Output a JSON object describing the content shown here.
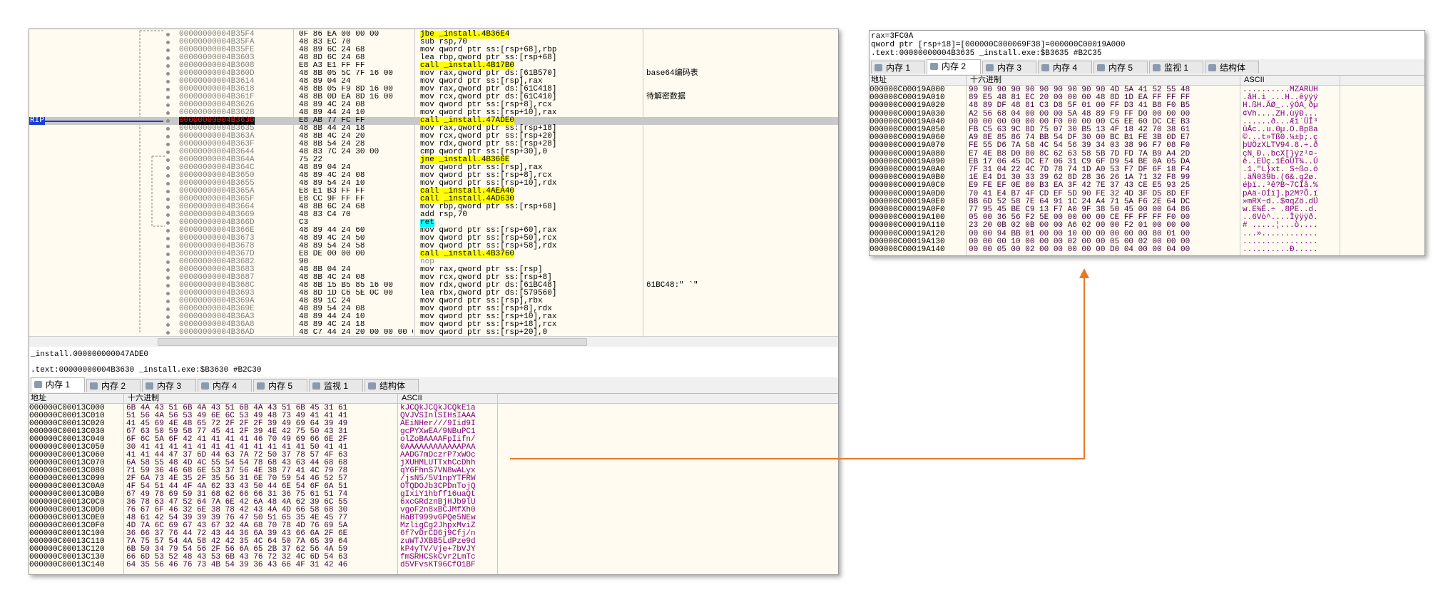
{
  "disassembly": {
    "rip_label": "RIP",
    "rows": [
      {
        "address": "00000000004B35F4",
        "bytes": "0F 86 EA 00 00 00",
        "instruction": "jbe _install.4B36E4"
      },
      {
        "address": "00000000004B35FA",
        "bytes": "48 83 EC 70",
        "instruction": "sub rsp,70"
      },
      {
        "address": "00000000004B35FE",
        "bytes": "48 89 6C 24 68",
        "instruction": "mov qword ptr ss:[rsp+68],rbp"
      },
      {
        "address": "00000000004B3603",
        "bytes": "48 8D 6C 24 68",
        "instruction": "lea rbp,qword ptr ss:[rsp+68]"
      },
      {
        "address": "00000000004B3608",
        "bytes": "E8 A3 E1 FF FF",
        "instruction": "call _install.4B17B0"
      },
      {
        "address": "00000000004B360D",
        "bytes": "48 8B 05 5C 7F 16 00",
        "instruction": "mov rax,qword ptr ds:[61B570]",
        "comment": "base64编码表"
      },
      {
        "address": "00000000004B3614",
        "bytes": "48 89 04 24",
        "instruction": "mov qword ptr ss:[rsp],rax"
      },
      {
        "address": "00000000004B3618",
        "bytes": "48 8B 05 F9 8D 16 00",
        "instruction": "mov rax,qword ptr ds:[61C418]"
      },
      {
        "address": "00000000004B361F",
        "bytes": "48 8B 0D EA 8D 16 00",
        "instruction": "mov rcx,qword ptr ds:[61C410]",
        "comment": "待解密数据"
      },
      {
        "address": "00000000004B3626",
        "bytes": "48 89 4C 24 08",
        "instruction": "mov qword ptr ss:[rsp+8],rcx"
      },
      {
        "address": "00000000004B362B",
        "bytes": "48 89 44 24 10",
        "instruction": "mov qword ptr ss:[rsp+10],rax"
      },
      {
        "address": "00000000004B3630",
        "bytes": "E8 AB 77 FC FF",
        "instruction": "call _install.47ADE0"
      },
      {
        "address": "00000000004B3635",
        "bytes": "48 8B 44 24 18",
        "instruction": "mov rax,qword ptr ss:[rsp+18]"
      },
      {
        "address": "00000000004B363A",
        "bytes": "48 8B 4C 24 20",
        "instruction": "mov rcx,qword ptr ss:[rsp+20]"
      },
      {
        "address": "00000000004B363F",
        "bytes": "48 8B 54 24 28",
        "instruction": "mov rdx,qword ptr ss:[rsp+28]"
      },
      {
        "address": "00000000004B3644",
        "bytes": "48 83 7C 24 30 00",
        "instruction": "cmp qword ptr ss:[rsp+30],0"
      },
      {
        "address": "00000000004B364A",
        "bytes": "75 22",
        "instruction": "jne _install.4B366E"
      },
      {
        "address": "00000000004B364C",
        "bytes": "48 89 04 24",
        "instruction": "mov qword ptr ss:[rsp],rax"
      },
      {
        "address": "00000000004B3650",
        "bytes": "48 89 4C 24 08",
        "instruction": "mov qword ptr ss:[rsp+8],rcx"
      },
      {
        "address": "00000000004B3655",
        "bytes": "48 89 54 24 10",
        "instruction": "mov qword ptr ss:[rsp+10],rdx"
      },
      {
        "address": "00000000004B365A",
        "bytes": "E8 E1 B3 FF FF",
        "instruction": "call _install.4AEA40"
      },
      {
        "address": "00000000004B365F",
        "bytes": "E8 CC 9F FF FF",
        "instruction": "call _install.4AD630"
      },
      {
        "address": "00000000004B3664",
        "bytes": "48 8B 6C 24 68",
        "instruction": "mov rbp,qword ptr ss:[rsp+68]"
      },
      {
        "address": "00000000004B3669",
        "bytes": "48 83 C4 70",
        "instruction": "add rsp,70"
      },
      {
        "address": "00000000004B366D",
        "bytes": "C3",
        "instruction": "ret"
      },
      {
        "address": "00000000004B366E",
        "bytes": "48 89 44 24 60",
        "instruction": "mov qword ptr ss:[rsp+60],rax"
      },
      {
        "address": "00000000004B3673",
        "bytes": "48 89 4C 24 50",
        "instruction": "mov qword ptr ss:[rsp+50],rcx"
      },
      {
        "address": "00000000004B3678",
        "bytes": "48 89 54 24 58",
        "instruction": "mov qword ptr ss:[rsp+58],rdx"
      },
      {
        "address": "00000000004B367D",
        "bytes": "E8 DE 00 00 00",
        "instruction": "call _install.4B3760"
      },
      {
        "address": "00000000004B3682",
        "bytes": "90",
        "instruction": "nop"
      },
      {
        "address": "00000000004B3683",
        "bytes": "48 8B 04 24",
        "instruction": "mov rax,qword ptr ss:[rsp]"
      },
      {
        "address": "00000000004B3687",
        "bytes": "48 8B 4C 24 08",
        "instruction": "mov rcx,qword ptr ss:[rsp+8]"
      },
      {
        "address": "00000000004B368C",
        "bytes": "48 8B 15 B5 85 16 00",
        "instruction": "mov rdx,qword ptr ds:[61BC48]",
        "comment": "61BC48:\" `\""
      },
      {
        "address": "00000000004B3693",
        "bytes": "48 8D 1D C6 5E 0C 00",
        "instruction": "lea rbx,qword ptr ds:[579560]"
      },
      {
        "address": "00000000004B369A",
        "bytes": "48 89 1C 24",
        "instruction": "mov qword ptr ss:[rsp],rbx"
      },
      {
        "address": "00000000004B369E",
        "bytes": "48 89 54 24 08",
        "instruction": "mov qword ptr ss:[rsp+8],rdx"
      },
      {
        "address": "00000000004B36A3",
        "bytes": "48 89 44 24 10",
        "instruction": "mov qword ptr ss:[rsp+10],rax"
      },
      {
        "address": "00000000004B36A8",
        "bytes": "48 89 4C 24 18",
        "instruction": "mov qword ptr ss:[rsp+18],rcx"
      },
      {
        "address": "00000000004B36AD",
        "bytes": "48 C7 44 24 20 00 00 00 00",
        "instruction": "mov qword ptr ss:[rsp+20],0"
      }
    ]
  },
  "status": {
    "line1": "_install.000000000047ADE0",
    "line2": ".text:00000000004B3630 _install.exe:$B3630 #B2C30"
  },
  "tabs": [
    "内存 1",
    "内存 2",
    "内存 3",
    "内存 4",
    "内存 5",
    "监视 1",
    "结构体"
  ],
  "memory_dump": {
    "headers": [
      "地址",
      "十六进制",
      "ASCII"
    ],
    "rows": [
      {
        "address": "000000C00013C000",
        "hex": "6B 4A 43 51 6B 4A 43 51 6B 4A 43 51 6B 45 31 61",
        "ascii": "kJCQkJCQkJCQkE1a"
      },
      {
        "address": "000000C00013C010",
        "hex": "51 56 4A 56 53 49 6E 6C 53 49 48 73 49 41 41 41",
        "ascii": "QVJVSInlSIHsIAAA"
      },
      {
        "address": "000000C00013C020",
        "hex": "41 45 69 4E 48 65 72 2F 2F 2F 39 49 69 64 39 49",
        "ascii": "AEiNHer///9Iid9I"
      },
      {
        "address": "000000C00013C030",
        "hex": "67 63 50 59 58 77 45 41 2F 39 4E 42 75 50 43 31",
        "ascii": "gcPYXwEA/9NBuPC1"
      },
      {
        "address": "000000C00013C040",
        "hex": "6F 6C 5A 6F 42 41 41 41 41 46 70 49 69 66 6E 2F",
        "ascii": "olZoBAAAAFpIifn/"
      },
      {
        "address": "000000C00013C050",
        "hex": "30 41 41 41 41 41 41 41 41 41 41 41 41 50 41 41",
        "ascii": "0AAAAAAAAAAAAPAA"
      },
      {
        "address": "000000C00013C060",
        "hex": "41 41 44 47 37 6D 44 63 7A 72 50 37 78 57 4F 63",
        "ascii": "AADG7mDczrP7xWOc"
      },
      {
        "address": "000000C00013C070",
        "hex": "6A 58 55 48 4D 4C 55 54 54 78 68 43 63 44 68 68",
        "ascii": "jXUHMLUTTxhCcDhh"
      },
      {
        "address": "000000C00013C080",
        "hex": "71 59 36 46 68 6E 53 37 56 4E 38 77 41 4C 79 78",
        "ascii": "qY6FhnS7VN8wALyx"
      },
      {
        "address": "000000C00013C090",
        "hex": "2F 6A 73 4E 35 2F 35 56 31 6E 70 59 54 46 52 57",
        "ascii": "/jsN5/5V1npYTFRW"
      },
      {
        "address": "000000C00013C0A0",
        "hex": "4F 54 51 44 4F 4A 62 33 43 50 44 6E 54 6F 6A 51",
        "ascii": "OTQDOJb3CPDnTojQ"
      },
      {
        "address": "000000C00013C0B0",
        "hex": "67 49 78 69 59 31 68 62 66 66 31 36 75 61 51 74",
        "ascii": "gIxiY1hbff16uaQt"
      },
      {
        "address": "000000C00013C0C0",
        "hex": "36 78 63 47 52 64 7A 6E 42 6A 48 4A 62 39 6C 55",
        "ascii": "6xcGRdznBjHJb9lU"
      },
      {
        "address": "000000C00013C0D0",
        "hex": "76 67 6F 46 32 6E 38 78 42 43 4A 4D 66 58 68 30",
        "ascii": "vgoF2n8xBCJMfXh0"
      },
      {
        "address": "000000C00013C0E0",
        "hex": "48 61 42 54 39 39 39 76 47 50 51 65 35 4E 45 77",
        "ascii": "HaBT999vGPQe5NEw"
      },
      {
        "address": "000000C00013C0F0",
        "hex": "4D 7A 6C 69 67 43 67 32 4A 68 70 78 4D 76 69 5A",
        "ascii": "MzligCg2JhpxMviZ"
      },
      {
        "address": "000000C00013C100",
        "hex": "36 66 37 76 44 72 43 44 36 6A 39 43 66 6A 2F 6E",
        "ascii": "6f7vDrCD6j9Cfj/n"
      },
      {
        "address": "000000C00013C110",
        "hex": "7A 75 57 54 4A 58 42 42 35 4C 64 50 7A 65 39 64",
        "ascii": "zuWTJXBB5LdPze9d"
      },
      {
        "address": "000000C00013C120",
        "hex": "6B 50 34 79 54 56 2F 56 6A 65 2B 37 62 56 4A 59",
        "ascii": "kP4yTV/Vje+7bVJY"
      },
      {
        "address": "000000C00013C130",
        "hex": "66 6D 53 52 48 43 53 6B 43 76 72 32 4C 6D 54 63",
        "ascii": "fmSRHCSkCvr2LmTc"
      },
      {
        "address": "000000C00013C140",
        "hex": "64 35 56 46 76 73 4B 54 39 36 43 66 4F 31 42 46",
        "ascii": "d5VFvsKT96CfO1BF"
      }
    ]
  },
  "right_panel": {
    "info": [
      "rax=3FC0A",
      "qword ptr [rsp+18]=[000000C000069F38]=000000C00019A000",
      ".text:00000000004B3635 _install.exe:$B3635 #B2C35"
    ],
    "tabs": [
      "内存 1",
      "内存 2",
      "内存 3",
      "内存 4",
      "内存 5",
      "监视 1",
      "结构体"
    ],
    "headers": [
      "地址",
      "十六进制",
      "ASCII"
    ],
    "rows": [
      {
        "address": "000000C00019A000",
        "hex": "90 90 90 90 90 90 90 90 90 90 4D 5A 41 52 55 48",
        "ascii": "..........MZARUH"
      },
      {
        "address": "000000C00019A010",
        "hex": "89 E5 48 81 EC 20 00 00 00 48 8D 1D EA FF FF FF",
        "ascii": ".åH.ì ...H..êÿÿÿ"
      },
      {
        "address": "000000C00019A020",
        "hex": "48 89 DF 48 81 C3 D8 5F 01 00 FF D3 41 B8 F0 B5",
        "ascii": "H.ßH.ÃØ_..ÿÓA¸ðµ"
      },
      {
        "address": "000000C00019A030",
        "hex": "A2 56 68 04 00 00 00 5A 48 89 F9 FF D0 00 00 00",
        "ascii": "¢Vh....ZH.ùÿÐ..."
      },
      {
        "address": "000000C00019A040",
        "hex": "00 00 00 00 00 00 F0 00 00 00 C6 EE 60 DC CE B3",
        "ascii": "......ð...Æî`ÜÎ³"
      },
      {
        "address": "000000C00019A050",
        "hex": "FB C5 63 9C 8D 75 07 30 B5 13 4F 18 42 70 38 61",
        "ascii": "ûÅc..u.0µ.O.Bp8a"
      },
      {
        "address": "000000C00019A060",
        "hex": "A9 8E 85 86 74 BB 54 DF 30 00 BC B1 FE 3B 0D E7",
        "ascii": "©...t»Tß0.¼±þ;.ç"
      },
      {
        "address": "000000C00019A070",
        "hex": "FE 55 D6 7A 58 4C 54 56 39 34 03 38 96 F7 08 F0",
        "ascii": "þUÖzXLTV94.8.÷.ð"
      },
      {
        "address": "000000C00019A080",
        "hex": "E7 4E B8 D0 80 8C 62 63 58 5B 7D FD 7A B9 A4 2D",
        "ascii": "çN¸Ð..bcX[}ýz¹¤-"
      },
      {
        "address": "000000C00019A090",
        "hex": "EB 17 06 45 DC E7 06 31 C9 6F D9 54 BE 0A 05 DA",
        "ascii": "ë..EÜç.1ÉoÙT¾..Ú"
      },
      {
        "address": "000000C00019A0A0",
        "hex": "7F 31 04 22 4C 7D 78 74 1D A0 53 F7 DF 6F 18 F4",
        "ascii": ".1.\"L}xt. S÷ßo.ô"
      },
      {
        "address": "000000C00019A0B0",
        "hex": "1E E4 D1 30 33 39 62 8D 28 36 26 1A 71 32 F8 99",
        "ascii": ".äÑ039b.(6&.q2ø."
      },
      {
        "address": "000000C00019A0C0",
        "hex": "E9 FE EF 0E 80 B3 EA 3F 42 7E 37 43 CE E5 93 25",
        "ascii": "éþï..³ê?B~7CÎå.%"
      },
      {
        "address": "000000C00019A0D0",
        "hex": "70 41 E4 B7 4F CD EF 5D 90 FE 32 4D 3F D5 8D EF",
        "ascii": "pAä·OÍï].þ2M?Õ.ï"
      },
      {
        "address": "000000C00019A0E0",
        "hex": "BB 6D 52 58 7E 64 91 1C 24 A4 71 5A F6 2E 64 DC",
        "ascii": "»mRX~d..$¤qZö.dÜ"
      },
      {
        "address": "000000C00019A0F0",
        "hex": "77 95 45 BE C9 13 F7 A0 9F 38 50 45 00 00 64 86",
        "ascii": "w.E¾É.÷ .8PE..d."
      },
      {
        "address": "000000C00019A100",
        "hex": "05 00 36 56 F2 5E 00 00 00 00 CE FF FF FF F0 00",
        "ascii": "..6Vò^....Îÿÿÿð."
      },
      {
        "address": "000000C00019A110",
        "hex": "23 20 0B 02 0B 00 00 A6 02 00 00 F2 01 00 00 00",
        "ascii": "# .....¦...ò...."
      },
      {
        "address": "000000C00019A120",
        "hex": "00 00 94 BB 01 00 00 10 00 00 00 00 00 80 01 00",
        "ascii": "...»............"
      },
      {
        "address": "000000C00019A130",
        "hex": "00 00 00 10 00 00 00 02 00 00 05 00 02 00 00 00",
        "ascii": "................"
      },
      {
        "address": "000000C00019A140",
        "hex": "00 00 05 00 02 00 00 00 00 00 D0 04 00 00 04 00",
        "ascii": "..........Ð....."
      }
    ]
  }
}
